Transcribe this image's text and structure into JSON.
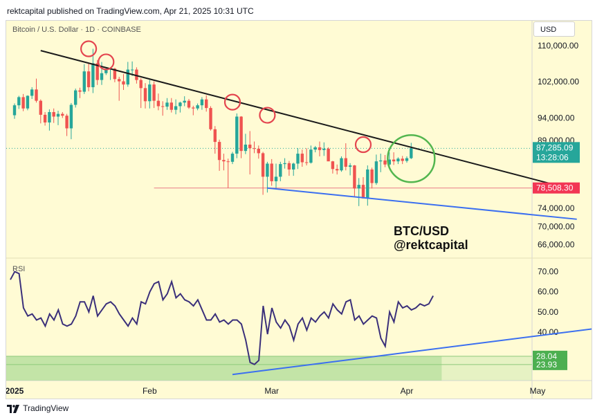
{
  "publish_line": "rektcapital published on TradingView.com, Apr 21, 2025 10:31 UTC",
  "symbol": "Bitcoin / U.S. Dollar · 1D · COINBASE",
  "currency_button": "USD",
  "watermark": [
    "BTC/USD",
    "@rektcapital"
  ],
  "footer": "TradingView",
  "colors": {
    "bull": "#26a69a",
    "bear": "#ef5350",
    "background": "#fffbd4",
    "downtrend": "#1a1a1a",
    "support": "#ec8a8f",
    "rsi_line": "#3a2f7a",
    "blue_trend": "#3b6ff0",
    "circle_red": "#e4454f",
    "circle_green": "#53b64f"
  },
  "chart_data": [
    {
      "type": "candlestick",
      "title": "Bitcoin / U.S. Dollar · 1D · COINBASE",
      "yaxis_ticks": [
        "110,000.00",
        "102,000.00",
        "94,000.00",
        "89,000.00",
        "74,000.00",
        "70,000.00",
        "66,000.00"
      ],
      "ylim": [
        63000,
        115500
      ],
      "x_ticks": [
        "2025",
        "Feb",
        "Mar",
        "Apr",
        "May"
      ],
      "candles": [
        [
          94600,
          97200,
          93800,
          96800
        ],
        [
          96800,
          98900,
          96000,
          98600
        ],
        [
          98600,
          99300,
          95500,
          96100
        ],
        [
          96100,
          99000,
          95700,
          98900
        ],
        [
          98900,
          100800,
          98200,
          100300
        ],
        [
          100300,
          102700,
          97400,
          97800
        ],
        [
          97800,
          98100,
          92800,
          94700
        ],
        [
          94700,
          95300,
          92300,
          93000
        ],
        [
          93000,
          95900,
          91200,
          95300
        ],
        [
          95300,
          96100,
          92900,
          94300
        ],
        [
          94300,
          95600,
          92400,
          94900
        ],
        [
          94900,
          95300,
          94000,
          94500
        ],
        [
          94500,
          94900,
          90000,
          91700
        ],
        [
          91700,
          97300,
          89300,
          96900
        ],
        [
          96900,
          100500,
          96300,
          100100
        ],
        [
          100100,
          100700,
          98400,
          99800
        ],
        [
          99800,
          105900,
          99300,
          104300
        ],
        [
          104300,
          106000,
          99900,
          100800
        ],
        [
          100800,
          109300,
          99500,
          106100
        ],
        [
          106100,
          106800,
          101300,
          102400
        ],
        [
          102400,
          106400,
          101300,
          103900
        ],
        [
          103900,
          105200,
          103500,
          104700
        ],
        [
          104700,
          105200,
          102400,
          104900
        ],
        [
          104900,
          105100,
          101900,
          102600
        ],
        [
          102600,
          103100,
          97800,
          102100
        ],
        [
          102100,
          103700,
          100200,
          101400
        ],
        [
          101400,
          106400,
          100900,
          104700
        ],
        [
          104700,
          106500,
          103300,
          104700
        ],
        [
          104700,
          105200,
          101600,
          102400
        ],
        [
          102400,
          102800,
          96200,
          100600
        ],
        [
          100600,
          101700,
          96100,
          97700
        ],
        [
          97700,
          102400,
          96100,
          101400
        ],
        [
          101400,
          102100,
          96200,
          97800
        ],
        [
          97800,
          99400,
          95700,
          96600
        ],
        [
          96600,
          97700,
          94500,
          96500
        ],
        [
          96500,
          98400,
          95800,
          97400
        ],
        [
          97400,
          98400,
          95200,
          95800
        ],
        [
          95800,
          98100,
          94800,
          96600
        ],
        [
          96600,
          97600,
          95200,
          97400
        ],
        [
          97400,
          98800,
          96600,
          97800
        ],
        [
          97800,
          98200,
          96000,
          96300
        ],
        [
          96300,
          96700,
          94600,
          96100
        ],
        [
          96100,
          97200,
          95700,
          96800
        ],
        [
          96800,
          98600,
          95800,
          98100
        ],
        [
          98100,
          99000,
          95400,
          96200
        ],
        [
          96200,
          96600,
          91200,
          91500
        ],
        [
          91500,
          92200,
          86100,
          88700
        ],
        [
          88700,
          89200,
          82300,
          84700
        ],
        [
          84700,
          86100,
          82400,
          84400
        ],
        [
          84400,
          85000,
          78500,
          84300
        ],
        [
          84300,
          86500,
          83800,
          86100
        ],
        [
          86100,
          95000,
          85100,
          94300
        ],
        [
          94300,
          94400,
          85100,
          86700
        ],
        [
          86700,
          90500,
          86000,
          88100
        ],
        [
          88100,
          91100,
          81500,
          87300
        ],
        [
          87300,
          88800,
          86200,
          87200
        ],
        [
          87200,
          87900,
          85000,
          86200
        ],
        [
          86200,
          86500,
          77000,
          81000
        ],
        [
          81000,
          84300,
          77500,
          83900
        ],
        [
          83900,
          84900,
          79000,
          80000
        ],
        [
          80000,
          83900,
          78500,
          81000
        ],
        [
          81000,
          84300,
          80000,
          83800
        ],
        [
          83800,
          85100,
          82800,
          84000
        ],
        [
          84000,
          84500,
          81200,
          82600
        ],
        [
          82600,
          84100,
          81200,
          83900
        ],
        [
          83900,
          87300,
          82700,
          86100
        ],
        [
          86100,
          87000,
          83200,
          84200
        ],
        [
          84200,
          87300,
          83500,
          84100
        ],
        [
          84100,
          87900,
          83900,
          87000
        ],
        [
          87000,
          87800,
          86400,
          87500
        ],
        [
          87500,
          88800,
          85500,
          86900
        ],
        [
          86900,
          88600,
          85600,
          87200
        ],
        [
          87200,
          87500,
          84600,
          84400
        ],
        [
          84400,
          84500,
          81700,
          82700
        ],
        [
          82700,
          83700,
          81500,
          82400
        ],
        [
          82400,
          85500,
          82100,
          85100
        ],
        [
          85100,
          88400,
          82400,
          83200
        ],
        [
          83200,
          84000,
          81300,
          83500
        ],
        [
          83500,
          83600,
          76600,
          78400
        ],
        [
          78400,
          80700,
          74500,
          79200
        ],
        [
          79200,
          80900,
          76400,
          76200
        ],
        [
          76200,
          83500,
          74600,
          82600
        ],
        [
          82600,
          83000,
          78400,
          79600
        ],
        [
          79600,
          85900,
          79200,
          84400
        ],
        [
          84400,
          86100,
          82000,
          84600
        ],
        [
          84600,
          85800,
          83100,
          83700
        ],
        [
          83700,
          86400,
          83000,
          84800
        ],
        [
          84800,
          86400,
          83600,
          84400
        ],
        [
          84400,
          85300,
          83800,
          85000
        ],
        [
          85000,
          85600,
          83800,
          84500
        ],
        [
          84500,
          85500,
          84100,
          85100
        ],
        [
          85100,
          88500,
          84900,
          87300
        ]
      ],
      "downtrend_line": {
        "from": [
          "Jan 7",
          108900
        ],
        "to": [
          "May 9",
          78200
        ]
      },
      "support_line": {
        "value": 78508.3,
        "label": "78,508.30"
      },
      "lower_trendline": {
        "from": [
          "Feb 28",
          78500
        ],
        "to": [
          "May 10",
          71600
        ]
      },
      "last_price": {
        "value": 87285.09,
        "label": "87,285.09",
        "countdown": "13:28:06"
      }
    },
    {
      "type": "line",
      "title": "RSI",
      "yaxis_ticks": [
        "70.00",
        "60.00",
        "50.00",
        "40.00"
      ],
      "ylim": [
        16,
        76
      ],
      "zone_labels": [
        "28.04",
        "23.93"
      ],
      "values": [
        66,
        70,
        69,
        52,
        48,
        49,
        46,
        47,
        43,
        49,
        46,
        51,
        44,
        43,
        44,
        48,
        55,
        55,
        50,
        58,
        48,
        51,
        54,
        55,
        53,
        49,
        46,
        43,
        47,
        44,
        55,
        54,
        60,
        64,
        65,
        56,
        59,
        65,
        57,
        59,
        56,
        55,
        53,
        56,
        51,
        46,
        46,
        49,
        45,
        46,
        44,
        46,
        46,
        44,
        36,
        25,
        24,
        26,
        53,
        39,
        52,
        45,
        42,
        46,
        43,
        36,
        44,
        47,
        41,
        47,
        45,
        48,
        50,
        47,
        54,
        51,
        49,
        55,
        56,
        46,
        48,
        44,
        46,
        48,
        47,
        37,
        33,
        50,
        45,
        55,
        52,
        53,
        51,
        52,
        54,
        53,
        54,
        58
      ],
      "rsi_trendline": {
        "from": [
          "Feb 20",
          19
        ],
        "to": [
          "May 26",
          45
        ]
      }
    }
  ]
}
